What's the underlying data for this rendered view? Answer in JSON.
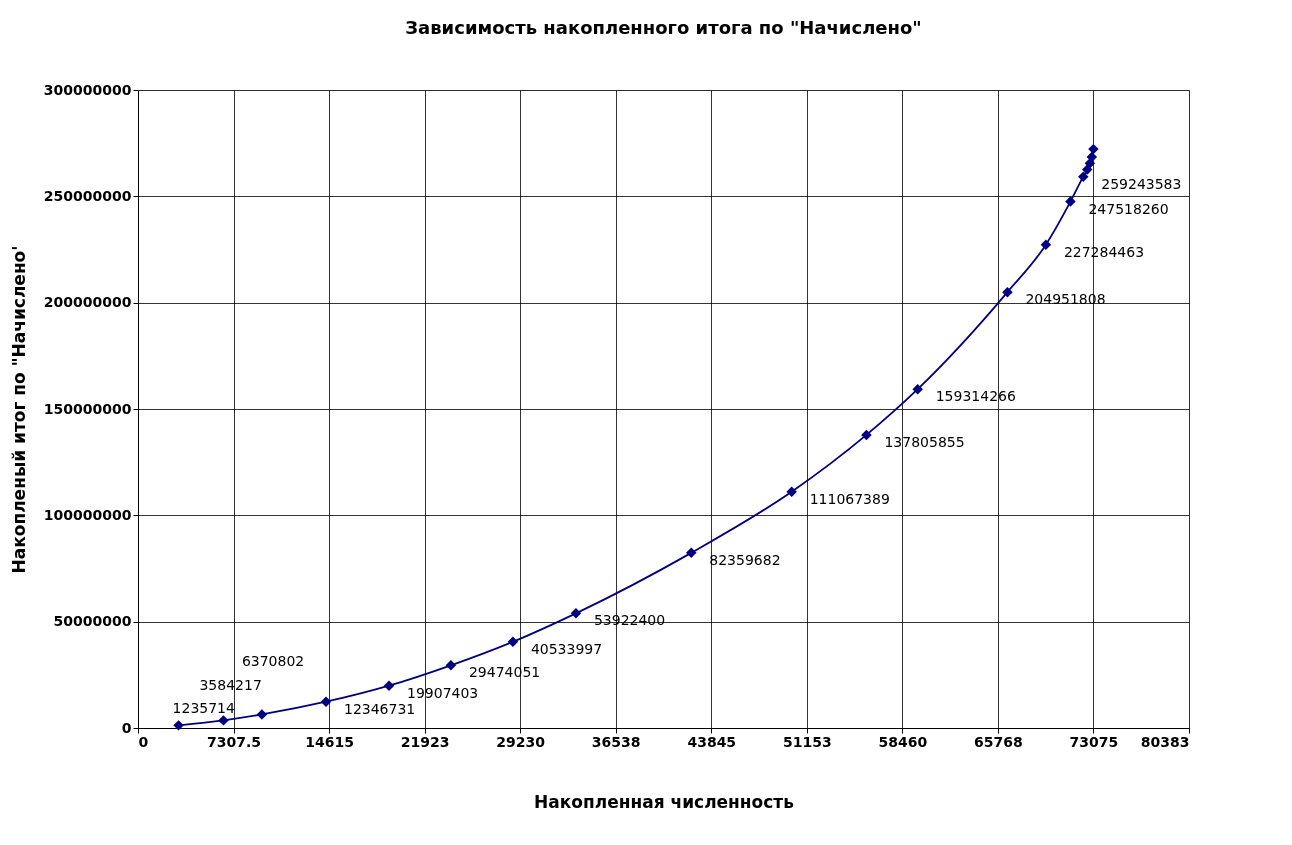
{
  "chart_data": {
    "type": "line",
    "title": "Зависимость накопленного итога по \"Начислено\"",
    "xlabel": "Накопленная численность",
    "ylabel": "Накопленый итог по \"Начислено'",
    "x": [
      3104,
      6535,
      9476,
      14377,
      19197,
      23935,
      28673,
      33493,
      42316,
      49994,
      55713,
      59634,
      66496,
      69437,
      71315,
      72296,
      72600,
      72800,
      72950,
      73075
    ],
    "series": [
      {
        "color": "#000080",
        "values": [
          1235714,
          3584217,
          6370802,
          12346731,
          19907403,
          29474051,
          40533997,
          53922400,
          82359682,
          111067389,
          137805855,
          159314266,
          204951808,
          227284463,
          247518260,
          259243583,
          262600000,
          265500000,
          268500000,
          272200000
        ],
        "value_labels": [
          "1235714",
          "3584217",
          "6370802",
          "12346731",
          "19907403",
          "29474051",
          "40533997",
          "53922400",
          "82359682",
          "111067389",
          "137805855",
          "159314266",
          "204951808",
          "227284463",
          "247518260",
          "259243583",
          null,
          null,
          null,
          null
        ]
      }
    ],
    "xlim": [
      0,
      80383
    ],
    "xticks": [
      0,
      7307.5,
      14615,
      {
        "value": 21922.5,
        "label": "21923"
      },
      29230,
      {
        "value": 36537.5,
        "label": "36538"
      },
      43845,
      {
        "value": 51152.5,
        "label": "51153"
      },
      58460,
      {
        "value": 65767.5,
        "label": "65768"
      },
      73075,
      {
        "value": 80382.5,
        "label": "80383"
      }
    ],
    "ylim": [
      0,
      300000000
    ],
    "yticks": [
      0,
      50000000,
      100000000,
      150000000,
      200000000,
      250000000,
      300000000
    ],
    "grid": true,
    "legend": false,
    "marker": "diamond",
    "line_style": "solid"
  }
}
